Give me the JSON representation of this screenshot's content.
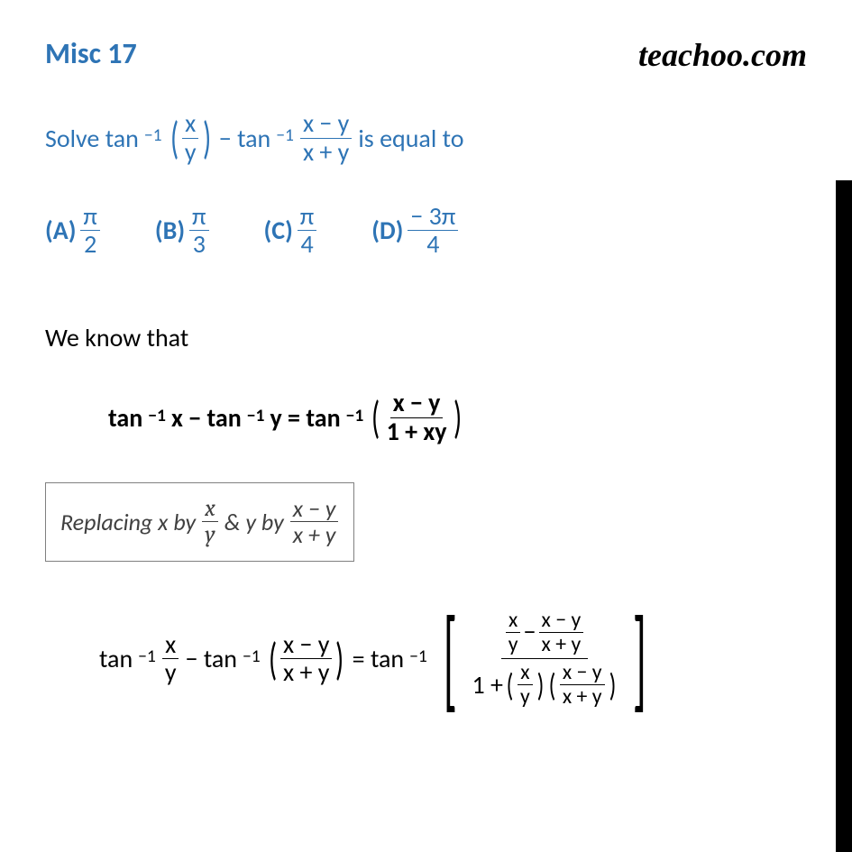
{
  "title": "Misc  17",
  "logo": "teachoo.com",
  "question": {
    "prefix": "Solve tan",
    "exp1": "−1",
    "frac1_num": "x",
    "frac1_den": "y",
    "mid": "− tan",
    "exp2": "−1",
    "frac2_num": "x − y",
    "frac2_den": "x + y",
    "suffix": "is equal to"
  },
  "options": {
    "a_label": "(A)",
    "a_num": "π",
    "a_den": "2",
    "b_label": "(B)",
    "b_num": "π",
    "b_den": "3",
    "c_label": "(C)",
    "c_num": "π",
    "c_den": "4",
    "d_label": "(D)",
    "d_num": "− 3π",
    "d_den": "4"
  },
  "solution_intro": "We know that",
  "formula": {
    "lhs1": "tan",
    "exp1": "−1",
    "var1": " x − tan",
    "exp2": "−1",
    "var2": " y = tan",
    "exp3": "−1",
    "rhs_num": "x − y",
    "rhs_den": "1 + xy"
  },
  "replace": {
    "text1": "Replacing x by",
    "frac1_num": "x",
    "frac1_den": "y",
    "text2": " & y by",
    "frac2_num": "x − y",
    "frac2_den": "x + y"
  },
  "final": {
    "t1": "tan",
    "e1": "−1",
    "f1_num": "x",
    "f1_den": "y",
    "t2": " − tan",
    "e2": "−1",
    "f2_num": "x − y",
    "f2_den": "x + y",
    "eq": "= tan",
    "e3": "−1",
    "big_top_f1_num": "x",
    "big_top_f1_den": "y",
    "big_top_minus": " − ",
    "big_top_f2_num": "x − y",
    "big_top_f2_den": "x + y",
    "big_bot_one": "1 + ",
    "big_bot_f1_num": "x",
    "big_bot_f1_den": "y",
    "big_bot_f2_num": "x − y",
    "big_bot_f2_den": "x + y"
  },
  "colors": {
    "primary": "#2e74b5",
    "text": "#000000",
    "box_border": "#808080",
    "replace_text": "#404040"
  }
}
